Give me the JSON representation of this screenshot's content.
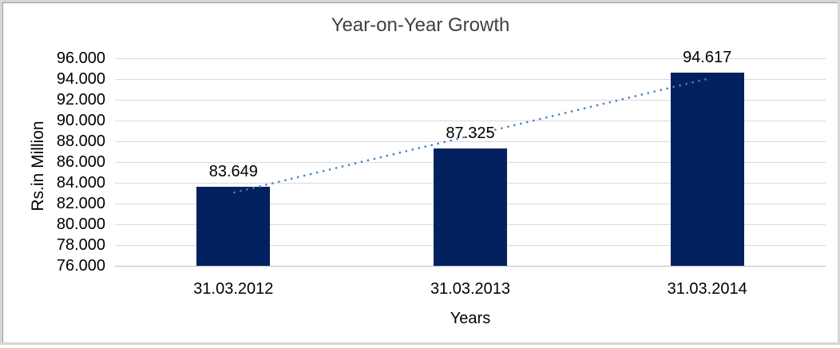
{
  "chart_data": {
    "type": "bar",
    "title": "Year-on-Year Growth",
    "xlabel": "Years",
    "ylabel": "Rs.in Million",
    "categories": [
      "31.03.2012",
      "31.03.2013",
      "31.03.2014"
    ],
    "values": [
      83.649,
      87.325,
      94.617
    ],
    "data_labels": [
      "83.649",
      "87.325",
      "94.617"
    ],
    "ylim": [
      76,
      96
    ],
    "ytick_step": 2,
    "ytick_labels": [
      "96.000",
      "94.000",
      "92.000",
      "90.000",
      "88.000",
      "86.000",
      "84.000",
      "82.000",
      "80.000",
      "78.000",
      "76.000"
    ],
    "grid": true,
    "legend_position": "none",
    "bar_color": "#02215e",
    "gridline_color": "#d9d9d9",
    "axis_line_color": "#bdbdbd",
    "title_color": "#404040",
    "text_color": "#000000",
    "trendline": {
      "type": "linear",
      "style": "dotted",
      "color": "#4a7ebf"
    }
  }
}
